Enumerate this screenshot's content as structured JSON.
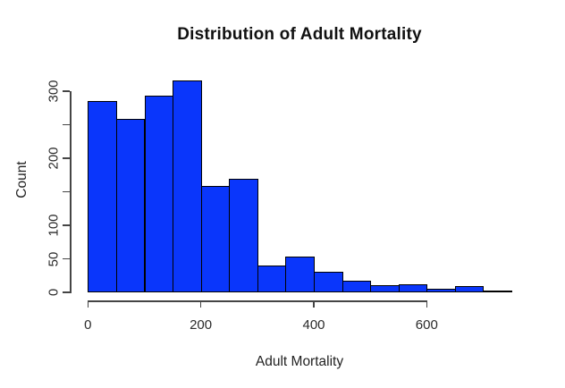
{
  "chart_data": {
    "type": "bar",
    "subtype": "histogram",
    "title": "Distribution of Adult Mortality",
    "xlabel": "Adult Mortality",
    "ylabel": "Count",
    "bin_start": 0,
    "bin_width": 50,
    "bin_edges": [
      0,
      50,
      100,
      150,
      200,
      250,
      300,
      350,
      400,
      450,
      500,
      550,
      600,
      650,
      700,
      750
    ],
    "counts": [
      285,
      259,
      293,
      316,
      159,
      170,
      40,
      53,
      31,
      18,
      11,
      12,
      6,
      10,
      3
    ],
    "xlim": [
      0,
      750
    ],
    "ylim": [
      0,
      320
    ],
    "x_ticks": [
      0,
      200,
      400,
      600
    ],
    "y_ticks": [
      0,
      50,
      100,
      150,
      200,
      250,
      300
    ],
    "y_labeled_ticks": [
      0,
      50,
      100,
      200,
      300
    ],
    "grid": false,
    "legend": null,
    "bar_color": "#0a36fb",
    "bar_border_color": "#010101",
    "axis_color": "#454545"
  }
}
